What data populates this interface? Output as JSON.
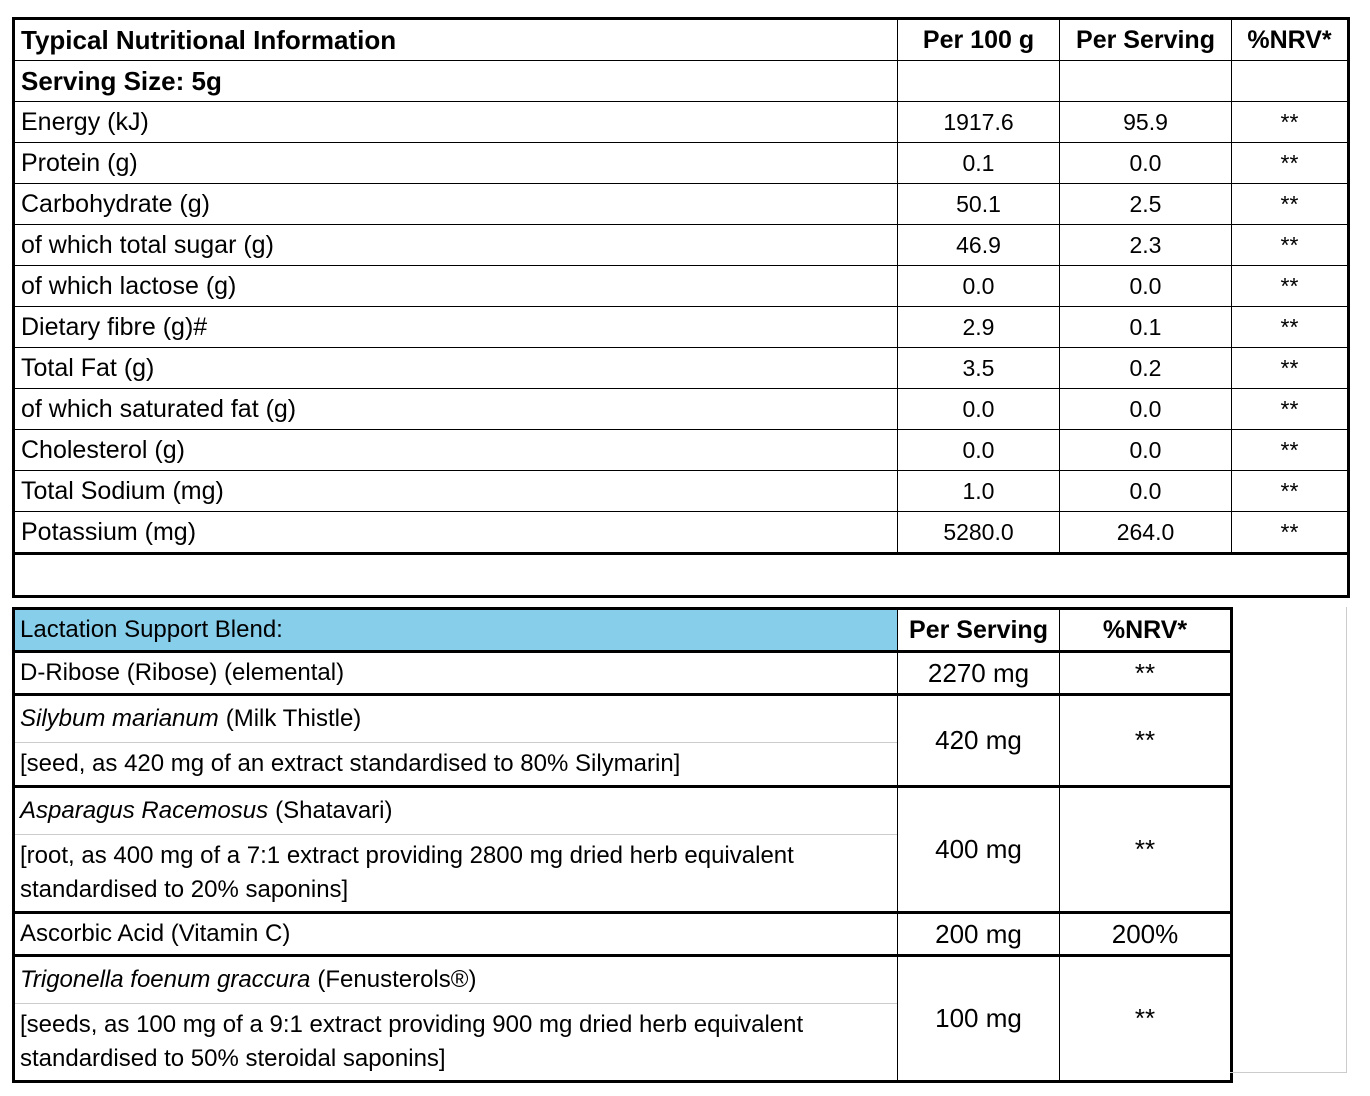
{
  "nutrition": {
    "header": [
      "Typical Nutritional Information",
      "Per 100 g",
      "Per Serving",
      "%NRV*"
    ],
    "serving_size": "Serving Size: 5g",
    "rows": [
      [
        "Energy (kJ)",
        "1917.6",
        "95.9",
        "**"
      ],
      [
        "Protein (g)",
        "0.1",
        "0.0",
        "**"
      ],
      [
        "Carbohydrate (g)",
        "50.1",
        "2.5",
        "**"
      ],
      [
        "of which total sugar (g)",
        "46.9",
        "2.3",
        "**"
      ],
      [
        "of which lactose (g)",
        "0.0",
        "0.0",
        "**"
      ],
      [
        "Dietary fibre (g)#",
        "2.9",
        "0.1",
        "**"
      ],
      [
        "Total Fat (g)",
        "3.5",
        "0.2",
        "**"
      ],
      [
        "of which saturated fat (g)",
        "0.0",
        "0.0",
        "**"
      ],
      [
        "Cholesterol (g)",
        "0.0",
        "0.0",
        "**"
      ],
      [
        "Total Sodium (mg)",
        "1.0",
        "0.0",
        "**"
      ],
      [
        "Potassium (mg)",
        "5280.0",
        "264.0",
        "**"
      ]
    ]
  },
  "blend": {
    "header": [
      "Lactation Support Blend:",
      "Per Serving",
      "%NRV*"
    ],
    "rows": [
      {
        "name": "D-Ribose (Ribose) (elemental)",
        "per_serving": "2270 mg",
        "nrv": "**"
      },
      {
        "latin": "Silybum marianum",
        "name": "(Milk Thistle)",
        "detail": "[seed, as 420 mg of an extract standardised to 80% Silymarin]",
        "per_serving": "420 mg",
        "nrv": "**"
      },
      {
        "latin": "Asparagus Racemosus",
        "name": "(Shatavari)",
        "detail": "[root, as 400 mg of a 7:1 extract providing 2800 mg dried herb equivalent standardised to 20% saponins]",
        "per_serving": "400 mg",
        "nrv": "**"
      },
      {
        "name": "Ascorbic Acid (Vitamin C)",
        "per_serving": "200 mg",
        "nrv": "200%"
      },
      {
        "latin": "Trigonella foenum graccura",
        "name": "(Fenusterols®)",
        "detail": "[seeds, as 100 mg of a 9:1 extract providing 900 mg dried herb equivalent standardised to 50% steroidal saponins]",
        "per_serving": "100 mg",
        "nrv": "**"
      }
    ]
  }
}
